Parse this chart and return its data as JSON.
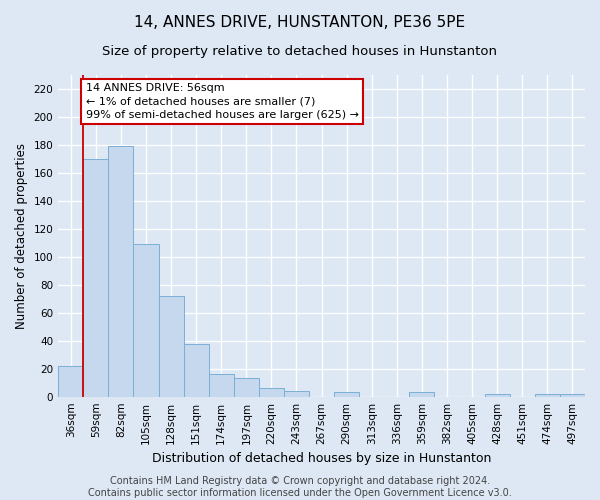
{
  "title": "14, ANNES DRIVE, HUNSTANTON, PE36 5PE",
  "subtitle": "Size of property relative to detached houses in Hunstanton",
  "xlabel": "Distribution of detached houses by size in Hunstanton",
  "ylabel": "Number of detached properties",
  "categories": [
    "36sqm",
    "59sqm",
    "82sqm",
    "105sqm",
    "128sqm",
    "151sqm",
    "174sqm",
    "197sqm",
    "220sqm",
    "243sqm",
    "267sqm",
    "290sqm",
    "313sqm",
    "336sqm",
    "359sqm",
    "382sqm",
    "405sqm",
    "428sqm",
    "451sqm",
    "474sqm",
    "497sqm"
  ],
  "values": [
    22,
    170,
    179,
    109,
    72,
    38,
    16,
    13,
    6,
    4,
    0,
    3,
    0,
    0,
    3,
    0,
    0,
    2,
    0,
    2,
    2
  ],
  "bar_color": "#c5d8ed",
  "bar_edge_color": "#7aafd4",
  "annotation_text": "14 ANNES DRIVE: 56sqm\n← 1% of detached houses are smaller (7)\n99% of semi-detached houses are larger (625) →",
  "annotation_box_color": "#ffffff",
  "annotation_box_edge_color": "#cc0000",
  "red_line_x": 1.0,
  "ylim": [
    0,
    230
  ],
  "yticks": [
    0,
    20,
    40,
    60,
    80,
    100,
    120,
    140,
    160,
    180,
    200,
    220
  ],
  "footer_line1": "Contains HM Land Registry data © Crown copyright and database right 2024.",
  "footer_line2": "Contains public sector information licensed under the Open Government Licence v3.0.",
  "plot_bg_color": "#dde8f4",
  "fig_bg_color": "#dde8f4",
  "grid_color": "#ffffff",
  "title_fontsize": 11,
  "subtitle_fontsize": 9.5,
  "ylabel_fontsize": 8.5,
  "xlabel_fontsize": 9,
  "tick_fontsize": 7.5,
  "annot_fontsize": 8,
  "footer_fontsize": 7
}
